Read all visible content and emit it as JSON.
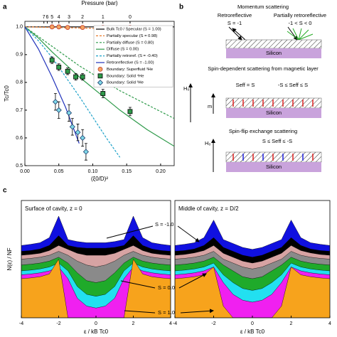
{
  "panel_labels": [
    "a",
    "b",
    "c"
  ],
  "chart_data": [
    {
      "type": "line",
      "xlabel": "(ξ0/D)²",
      "ylabel": "Tc/Tc0",
      "x2label": "Pressure (bar)",
      "xlim": [
        0,
        0.22
      ],
      "ylim": [
        0.5,
        1.02
      ],
      "xticks": [
        {
          "value": 0,
          "label": "0.00"
        },
        {
          "value": 0.05,
          "label": "0.05"
        },
        {
          "value": 0.1,
          "label": "0.10"
        },
        {
          "value": 0.15,
          "label": "0.15"
        },
        {
          "value": 0.2,
          "label": "0.20"
        }
      ],
      "yticks": [
        0.5,
        0.6,
        0.7,
        0.8,
        0.9,
        {
          "value": 1,
          "label": "1.0"
        }
      ],
      "x2ticks": [
        {
          "value": 0.028,
          "label": "7"
        },
        {
          "value": 0.033,
          "label": "6"
        },
        {
          "value": 0.04,
          "label": "5"
        },
        {
          "value": 0.05,
          "label": "4"
        },
        {
          "value": 0.065,
          "label": "3"
        },
        {
          "value": 0.085,
          "label": "2"
        },
        {
          "value": 0.115,
          "label": "1"
        },
        {
          "value": 0.155,
          "label": "0"
        }
      ],
      "x": [
        0,
        0.02,
        0.04,
        0.06,
        0.08,
        0.1,
        0.12,
        0.14,
        0.16,
        0.18,
        0.2,
        0.22
      ],
      "series": [
        {
          "name": "Bulk Tc0 / Specular (S = 1.00)",
          "color": "#000000",
          "style": "solid",
          "values": [
            1,
            1,
            1,
            1,
            1,
            1,
            1,
            1,
            1,
            1,
            1,
            1
          ]
        },
        {
          "name": "Partially specular (S = 0.98)",
          "color": "#e8792b",
          "style": "dashed",
          "values": [
            1,
            0.999,
            0.998,
            0.997,
            0.996,
            0.995,
            0.994,
            0.993,
            0.992,
            0.991,
            0.99,
            0.989
          ]
        },
        {
          "name": "Partially diffuse (S = 0.80)",
          "color": "#2e9a4a",
          "style": "dashed",
          "values": [
            1,
            0.965,
            0.93,
            0.895,
            0.86,
            0.83,
            0.8,
            0.77,
            0.745,
            0.72,
            0.695,
            0.67
          ]
        },
        {
          "name": "Diffuse (S = 0.00)",
          "color": "#2e9a4a",
          "style": "solid",
          "values": [
            1,
            0.96,
            0.91,
            0.865,
            0.82,
            0.78,
            0.74,
            0.7,
            0.665,
            0.63,
            0.6,
            0.57
          ]
        },
        {
          "name": "Partially retroref. (S = -0.40)",
          "color": "#1aa0c8",
          "style": "dashed",
          "values": [
            1,
            0.95,
            0.89,
            0.82,
            0.75,
            0.675,
            0.6,
            0.53,
            null,
            null,
            null,
            null
          ]
        },
        {
          "name": "Retroreflective (S = -1.00)",
          "color": "#2233bb",
          "style": "solid",
          "values": [
            1,
            0.92,
            0.82,
            0.71,
            0.58,
            null,
            null,
            null,
            null,
            null,
            null,
            null
          ]
        }
      ],
      "scatter_series": [
        {
          "name": "Boundary: Superfluid ³He",
          "color": "#f4a460",
          "edge": "#c0392b",
          "marker": "circle",
          "x": [
            0.04,
            0.05,
            0.063,
            0.085,
            0.115,
            0.155
          ],
          "values": [
            1,
            1,
            0.998,
            0.998,
            0.998,
            0.998
          ]
        },
        {
          "name": "Boundary: Solid ⁴He",
          "color": "#2e9a4a",
          "edge": "#000000",
          "marker": "square",
          "x": [
            0.04,
            0.05,
            0.063,
            0.075,
            0.085,
            0.115,
            0.155
          ],
          "values": [
            0.88,
            0.855,
            0.84,
            0.82,
            0.82,
            0.76,
            0.695
          ],
          "errors": [
            0.012,
            0.012,
            0.012,
            0.012,
            0.012,
            0.015,
            0.015
          ]
        },
        {
          "name": "Boundary: Solid ³He",
          "color": "#7fd8e8",
          "edge": "#1a3a6a",
          "marker": "diamond",
          "x": [
            0.045,
            0.05,
            0.065,
            0.07,
            0.078,
            0.085,
            0.09
          ],
          "values": [
            0.73,
            0.7,
            0.69,
            0.64,
            0.62,
            0.6,
            0.55
          ],
          "errors": [
            0.03,
            0.03,
            0.03,
            0.03,
            0.03,
            0.03,
            0.03
          ]
        }
      ]
    },
    {
      "type": "area",
      "title": "Surface of cavity, z = 0",
      "xlabel": "ε / kB Tc0",
      "ylabel": "N(ε) / NF",
      "xlim": [
        -4,
        4
      ],
      "ylim": [
        0,
        3
      ],
      "xticks": [
        -4,
        -2,
        0,
        2,
        4
      ],
      "x": [
        -4,
        -3.5,
        -3,
        -2.5,
        -2,
        -1.5,
        -1,
        -0.5,
        0,
        0.5,
        1,
        1.5,
        2,
        2.5,
        3,
        3.5,
        4
      ],
      "annotations": [
        "S = -1.0",
        "S = 0.0",
        "S = 1.0"
      ],
      "series": [
        {
          "color": "#1010e0",
          "values": [
            1.85,
            1.88,
            1.92,
            2.05,
            2.6,
            2.0,
            1.95,
            1.92,
            1.92,
            1.92,
            1.95,
            2.0,
            2.6,
            2.05,
            1.92,
            1.88,
            1.85
          ]
        },
        {
          "color": "#000000",
          "values": [
            1.7,
            1.72,
            1.76,
            1.85,
            2.1,
            1.85,
            1.8,
            1.78,
            1.78,
            1.78,
            1.8,
            1.85,
            2.1,
            1.85,
            1.76,
            1.72,
            1.7
          ]
        },
        {
          "color": "#d7a3a3",
          "values": [
            1.6,
            1.62,
            1.65,
            1.72,
            1.85,
            1.75,
            1.65,
            1.6,
            1.6,
            1.6,
            1.65,
            1.75,
            1.85,
            1.72,
            1.65,
            1.62,
            1.6
          ]
        },
        {
          "color": "#8a8a8a",
          "values": [
            1.5,
            1.52,
            1.55,
            1.6,
            1.7,
            1.6,
            1.45,
            1.35,
            1.3,
            1.35,
            1.45,
            1.6,
            1.7,
            1.6,
            1.55,
            1.52,
            1.5
          ]
        },
        {
          "color": "#1faa2a",
          "values": [
            1.35,
            1.37,
            1.4,
            1.45,
            1.55,
            1.4,
            1.15,
            0.95,
            0.9,
            0.95,
            1.15,
            1.4,
            1.55,
            1.45,
            1.4,
            1.37,
            1.35
          ]
        },
        {
          "color": "#22e0f0",
          "values": [
            1.2,
            1.22,
            1.25,
            1.3,
            1.4,
            1.2,
            0.8,
            0.6,
            0.55,
            0.6,
            0.8,
            1.2,
            1.4,
            1.3,
            1.25,
            1.22,
            1.2
          ]
        },
        {
          "color": "#f020f0",
          "values": [
            1.1,
            1.12,
            1.15,
            1.2,
            1.3,
            1.0,
            0.5,
            0.3,
            0.25,
            0.3,
            0.5,
            1.0,
            1.3,
            1.2,
            1.15,
            1.12,
            1.1
          ]
        },
        {
          "color": "#f7a31c",
          "values": [
            1.0,
            1.02,
            1.05,
            1.12,
            1.5,
            0,
            0,
            0,
            0,
            0,
            0,
            0,
            1.5,
            1.12,
            1.05,
            1.02,
            1.0
          ]
        }
      ]
    },
    {
      "type": "area",
      "title": "Middle of cavity, z = D/2",
      "xlabel": "ε / kB Tc0",
      "xlim": [
        -4,
        4
      ],
      "ylim": [
        0,
        3
      ],
      "xticks": [
        -4,
        -2,
        0,
        2,
        4
      ],
      "x": [
        -4,
        -3.5,
        -3,
        -2.5,
        -2,
        -1.5,
        -1,
        -0.5,
        0,
        0.5,
        1,
        1.5,
        2,
        2.5,
        3,
        3.5,
        4
      ],
      "series": [
        {
          "color": "#1010e0",
          "values": [
            1.85,
            1.88,
            1.92,
            2.05,
            2.5,
            2.0,
            1.9,
            1.8,
            1.75,
            1.8,
            1.9,
            2.0,
            2.5,
            2.05,
            1.92,
            1.88,
            1.85
          ]
        },
        {
          "color": "#000000",
          "values": [
            1.7,
            1.72,
            1.76,
            1.85,
            2.05,
            1.8,
            1.7,
            1.6,
            1.55,
            1.6,
            1.7,
            1.8,
            2.05,
            1.85,
            1.76,
            1.72,
            1.7
          ]
        },
        {
          "color": "#d7a3a3",
          "values": [
            1.6,
            1.62,
            1.66,
            1.72,
            1.85,
            1.65,
            1.55,
            1.45,
            1.4,
            1.45,
            1.55,
            1.65,
            1.85,
            1.72,
            1.66,
            1.62,
            1.6
          ]
        },
        {
          "color": "#8a8a8a",
          "values": [
            1.5,
            1.52,
            1.55,
            1.6,
            1.7,
            1.5,
            1.4,
            1.3,
            1.25,
            1.3,
            1.4,
            1.5,
            1.7,
            1.6,
            1.55,
            1.52,
            1.5
          ]
        },
        {
          "color": "#1faa2a",
          "values": [
            1.35,
            1.37,
            1.4,
            1.45,
            1.55,
            1.35,
            1.2,
            1.05,
            1.0,
            1.05,
            1.2,
            1.35,
            1.55,
            1.45,
            1.4,
            1.37,
            1.35
          ]
        },
        {
          "color": "#22e0f0",
          "values": [
            1.2,
            1.22,
            1.25,
            1.3,
            1.4,
            1.1,
            0.9,
            0.75,
            0.7,
            0.75,
            0.9,
            1.1,
            1.4,
            1.3,
            1.25,
            1.22,
            1.2
          ]
        },
        {
          "color": "#f020f0",
          "values": [
            1.1,
            1.12,
            1.15,
            1.2,
            1.3,
            0.9,
            0.6,
            0.45,
            0.4,
            0.45,
            0.6,
            0.9,
            1.3,
            1.2,
            1.15,
            1.12,
            1.1
          ]
        },
        {
          "color": "#f7a31c",
          "values": [
            1.0,
            1.02,
            1.05,
            1.1,
            1.3,
            0.3,
            0,
            0,
            0,
            0,
            0,
            0.3,
            1.3,
            1.1,
            1.05,
            1.02,
            1.0
          ]
        }
      ]
    }
  ],
  "diagram": {
    "title1": "Momentum scattering",
    "retro": "Retroreflective",
    "retro_s": "S = -1",
    "partial": "Partially retroreflective",
    "partial_s": "-1 < S < 0",
    "silicon": "Silicon",
    "title2": "Spin-dependent scattering from magnetic layer",
    "seff1": "Seff = S",
    "seff2": "-S ≤ Seff ≤ S",
    "h0": "H₀",
    "m": "m",
    "title3": "Spin-flip exchange scattering",
    "seff3": "S ≤ Seff ≤ -S"
  }
}
